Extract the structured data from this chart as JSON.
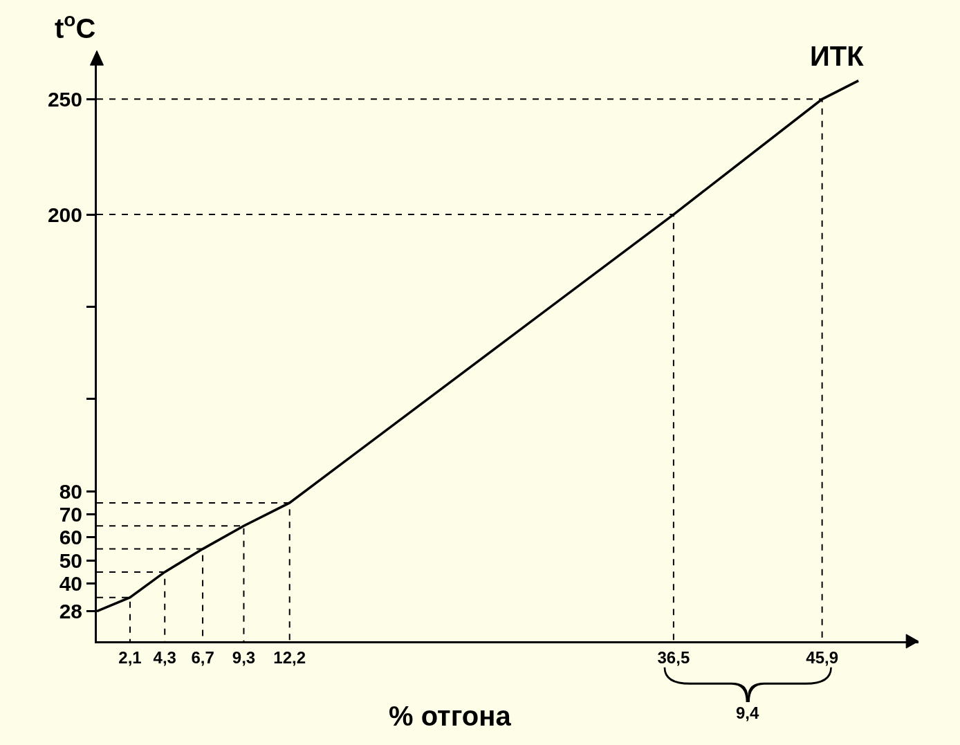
{
  "chart_data": {
    "type": "line",
    "xlabel": "% отгона",
    "ylabel": "t$^{o}$C",
    "series": [
      {
        "name": "ИТК",
        "color": "#000000",
        "x": [
          0,
          2.1,
          4.3,
          6.7,
          9.3,
          12.2,
          36.5,
          45.9,
          48.2
        ],
        "values": [
          28,
          34,
          45,
          55,
          65,
          75,
          200,
          250,
          258
        ]
      },
      {
        "color": "#000000",
        "line_style": "dashed",
        "x": [
          0,
          2.1,
          2.1
        ],
        "values": [
          34,
          34,
          15
        ]
      },
      {
        "color": "#000000",
        "line_style": "dashed",
        "x": [
          0,
          4.3,
          4.3
        ],
        "values": [
          45,
          45,
          15
        ]
      },
      {
        "color": "#000000",
        "line_style": "dashed",
        "x": [
          0,
          6.7,
          6.7
        ],
        "values": [
          55,
          55,
          15
        ]
      },
      {
        "color": "#000000",
        "line_style": "dashed",
        "x": [
          0,
          9.3,
          9.3
        ],
        "values": [
          65,
          65,
          15
        ]
      },
      {
        "color": "#000000",
        "line_style": "dashed",
        "x": [
          0,
          12.2,
          12.2
        ],
        "values": [
          75,
          75,
          15
        ]
      },
      {
        "color": "#000000",
        "line_style": "dashed",
        "x": [
          0,
          36.5,
          36.5
        ],
        "values": [
          200,
          200,
          15
        ]
      },
      {
        "color": "#000000",
        "line_style": "dashed",
        "x": [
          0,
          45.9,
          45.9
        ],
        "values": [
          250,
          250,
          15
        ]
      }
    ],
    "xlim": [
      0,
      52
    ],
    "ylim": [
      15,
      266
    ],
    "xticks": [
      {
        "value": 2.1,
        "label": "2,1"
      },
      {
        "value": 4.3,
        "label": "4,3"
      },
      {
        "value": 6.7,
        "label": "6,7"
      },
      {
        "value": 9.3,
        "label": "9,3"
      },
      {
        "value": 12.2,
        "label": "12,2"
      },
      {
        "value": 36.5,
        "label": "36,5"
      },
      {
        "value": 45.9,
        "label": "45,9"
      }
    ],
    "yticks": [
      28,
      40,
      50,
      60,
      70,
      80,
      {
        "value": 120,
        "label": null
      },
      {
        "value": 160,
        "label": null
      },
      200,
      250
    ],
    "annotations": [
      "9,4"
    ],
    "grid": false,
    "legend": false,
    "marker": "none",
    "line_style": "solid"
  }
}
